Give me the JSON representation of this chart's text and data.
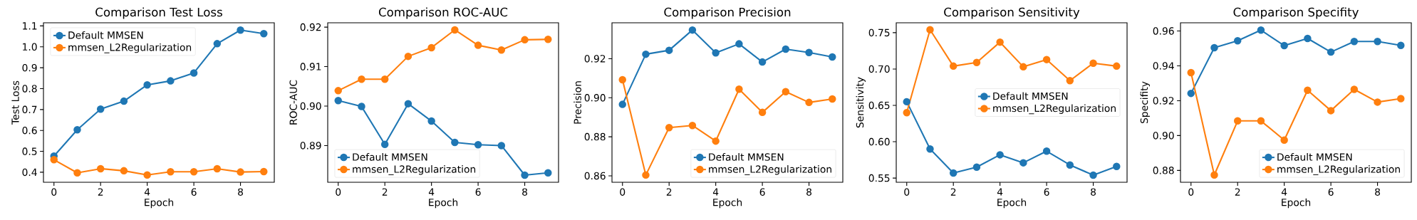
{
  "chart_data": [
    {
      "type": "line",
      "title": "Comparison Test Loss",
      "xlabel": "Epoch",
      "ylabel": "Test Loss",
      "x": [
        0,
        1,
        2,
        3,
        4,
        5,
        6,
        7,
        8,
        9
      ],
      "xlim": [
        -0.45,
        9.45
      ],
      "xticks": [
        0,
        2,
        4,
        6,
        8
      ],
      "ylim": [
        0.352,
        1.115
      ],
      "yticks": [
        0.4,
        0.5,
        0.6,
        0.7,
        0.8,
        0.9,
        {
          "value": 1.0,
          "label": "1.0"
        },
        1.1
      ],
      "legend": "top left",
      "marker": "circle",
      "series": [
        {
          "name": "Default MMSEN",
          "color": "#1f77b4",
          "values": [
            0.477,
            0.603,
            0.702,
            0.74,
            0.818,
            0.837,
            0.875,
            1.015,
            1.08,
            1.063
          ]
        },
        {
          "name": "mmsen_L2Regularization",
          "color": "#ff7f0e",
          "values": [
            0.46,
            0.397,
            0.417,
            0.407,
            0.387,
            0.402,
            0.402,
            0.417,
            0.401,
            0.403
          ]
        }
      ]
    },
    {
      "type": "line",
      "title": "Comparison ROC-AUC",
      "xlabel": "Epoch",
      "ylabel": "ROC-AUC",
      "x": [
        0,
        1,
        2,
        3,
        4,
        5,
        6,
        7,
        8,
        9
      ],
      "xlim": [
        -0.45,
        9.45
      ],
      "xticks": [
        0,
        2,
        4,
        6,
        8
      ],
      "ylim": [
        0.8807,
        0.9211
      ],
      "yticks": [
        0.89,
        {
          "value": 0.9,
          "label": "0.90"
        },
        0.91,
        0.92
      ],
      "legend": "bottom left",
      "marker": "circle",
      "series": [
        {
          "name": "Default MMSEN",
          "color": "#1f77b4",
          "values": [
            0.9014,
            0.8999,
            0.8903,
            0.9006,
            0.8962,
            0.8908,
            0.8902,
            0.89,
            0.8825,
            0.8831
          ]
        },
        {
          "name": "mmsen_L2Regularization",
          "color": "#ff7f0e",
          "values": [
            0.9039,
            0.9068,
            0.9068,
            0.9126,
            0.9148,
            0.9193,
            0.9154,
            0.9142,
            0.9168,
            0.9169
          ]
        }
      ]
    },
    {
      "type": "line",
      "title": "Comparison Precision",
      "xlabel": "Epoch",
      "ylabel": "Precision",
      "x": [
        0,
        1,
        2,
        3,
        4,
        5,
        6,
        7,
        8,
        9
      ],
      "xlim": [
        -0.45,
        9.45
      ],
      "xticks": [
        0,
        2,
        4,
        6,
        8
      ],
      "ylim": [
        0.8567,
        0.9384
      ],
      "yticks": [
        0.86,
        0.88,
        {
          "value": 0.9,
          "label": "0.90"
        },
        0.92
      ],
      "legend": "bottom right",
      "marker": "circle",
      "series": [
        {
          "name": "Default MMSEN",
          "color": "#1f77b4",
          "values": [
            0.8966,
            0.9223,
            0.9243,
            0.9347,
            0.923,
            0.9276,
            0.9183,
            0.9249,
            0.9232,
            0.9209
          ]
        },
        {
          "name": "mmsen_L2Regularization",
          "color": "#ff7f0e",
          "values": [
            0.9092,
            0.8604,
            0.8847,
            0.8858,
            0.8778,
            0.9044,
            0.8925,
            0.9031,
            0.8976,
            0.8994
          ]
        }
      ]
    },
    {
      "type": "line",
      "title": "Comparison Sensitivity",
      "xlabel": "Epoch",
      "ylabel": "Sensitivity",
      "x": [
        0,
        1,
        2,
        3,
        4,
        5,
        6,
        7,
        8,
        9
      ],
      "xlim": [
        -0.45,
        9.45
      ],
      "xticks": [
        0,
        2,
        4,
        6,
        8
      ],
      "ylim": [
        0.5442,
        0.7636
      ],
      "yticks": [
        0.55,
        {
          "value": 0.6,
          "label": "0.60"
        },
        0.65,
        {
          "value": 0.7,
          "label": "0.70"
        },
        0.75
      ],
      "legend": "right",
      "marker": "circle",
      "series": [
        {
          "name": "Default MMSEN",
          "color": "#1f77b4",
          "values": [
            0.655,
            0.59,
            0.557,
            0.565,
            0.582,
            0.571,
            0.587,
            0.568,
            0.554,
            0.566
          ]
        },
        {
          "name": "mmsen_L2Regularization",
          "color": "#ff7f0e",
          "values": [
            0.64,
            0.754,
            0.704,
            0.709,
            0.737,
            0.703,
            0.713,
            0.684,
            0.708,
            0.704
          ]
        }
      ]
    },
    {
      "type": "line",
      "title": "Comparison Specifity",
      "xlabel": "Epoch",
      "ylabel": "Specifity",
      "x": [
        0,
        1,
        2,
        3,
        4,
        5,
        6,
        7,
        8,
        9
      ],
      "xlim": [
        -0.45,
        9.45
      ],
      "xticks": [
        0,
        2,
        4,
        6,
        8
      ],
      "ylim": [
        0.8732,
        0.9647
      ],
      "yticks": [
        0.88,
        {
          "value": 0.9,
          "label": "0.90"
        },
        0.92,
        0.94,
        0.96
      ],
      "legend": "bottom right",
      "marker": "circle",
      "series": [
        {
          "name": "Default MMSEN",
          "color": "#1f77b4",
          "values": [
            0.9242,
            0.9504,
            0.9544,
            0.9605,
            0.9516,
            0.9557,
            0.9479,
            0.954,
            0.954,
            0.9517
          ]
        },
        {
          "name": "mmsen_L2Regularization",
          "color": "#ff7f0e",
          "values": [
            0.9361,
            0.8774,
            0.9084,
            0.9084,
            0.8974,
            0.926,
            0.9143,
            0.9265,
            0.9192,
            0.9212
          ]
        }
      ]
    }
  ]
}
